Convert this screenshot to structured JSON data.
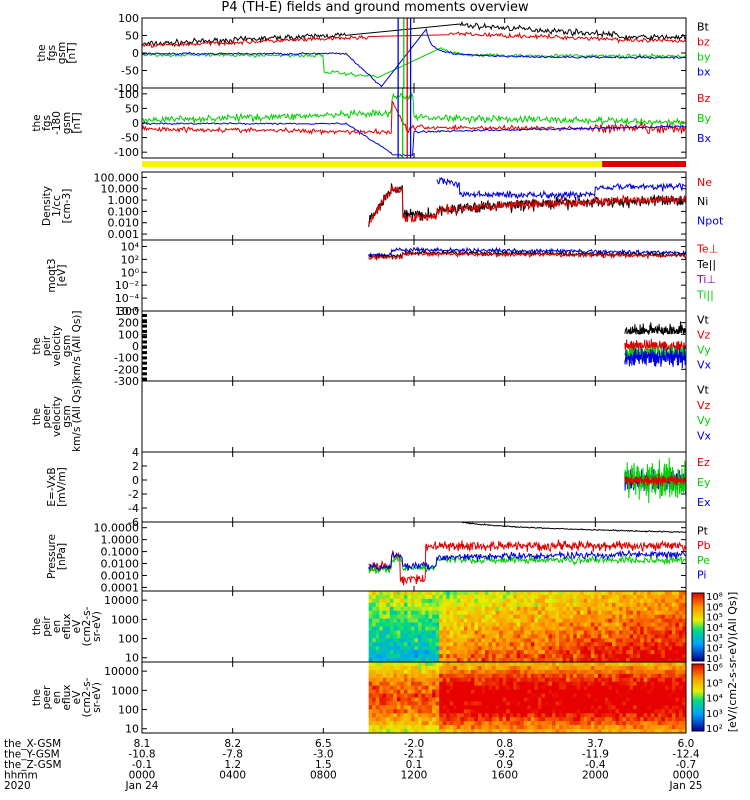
{
  "title": "P4 (TH-E) fields and ground moments overview",
  "colors": {
    "black": "#000000",
    "red": "#e00000",
    "green": "#00d000",
    "blue": "#0000e0",
    "yellow": "#f5f500",
    "bar_red": "#e00000"
  },
  "x_axis": {
    "tick_positions_hours": [
      0,
      4,
      8,
      12,
      16,
      20,
      24
    ],
    "rows": [
      {
        "label": "the_X-GSM",
        "values": [
          "8.1",
          "8.2",
          "6.5",
          "-2.0",
          "0.8",
          "3.7",
          "6.0"
        ]
      },
      {
        "label": "the_Y-GSM",
        "values": [
          "-10.8",
          "-7.8",
          "-3.0",
          "-2.1",
          "-9.2",
          "-11.9",
          "-12.4"
        ]
      },
      {
        "label": "the_Z-GSM",
        "values": [
          "-0.1",
          "1.2",
          "1.5",
          "0.1",
          "0.9",
          "-0.4",
          "-0.7"
        ]
      },
      {
        "label": "hhmm",
        "values": [
          "0000",
          "0400",
          "0800",
          "1200",
          "1600",
          "2000",
          "0000"
        ]
      },
      {
        "label": "2020",
        "values": [
          "Jan 24",
          "",
          "",
          "",
          "",
          "",
          "Jan 25"
        ]
      }
    ]
  },
  "chart_data": [
    {
      "type": "line",
      "name": "fgs-gsm",
      "ylabel_lines": [
        "the",
        "fgs",
        "gsm",
        "[nT]"
      ],
      "ylim": [
        -100,
        100
      ],
      "yticks": [
        "100",
        "50",
        "0",
        "-50",
        "-100"
      ],
      "ytick_values": [
        100,
        50,
        0,
        -50,
        -100
      ],
      "legend": [
        {
          "name": "Bt",
          "color": "black"
        },
        {
          "name": "bz",
          "color": "red"
        },
        {
          "name": "by",
          "color": "green"
        },
        {
          "name": "bx",
          "color": "blue"
        }
      ]
    },
    {
      "type": "line",
      "name": "fgs-gsm-hp",
      "ylabel_lines": [
        "the",
        "fgs",
        "-180",
        "gsm",
        "[nT]"
      ],
      "ylim": [
        -120,
        120
      ],
      "yticks": [
        "100",
        "50",
        "0",
        "-50",
        "-100"
      ],
      "ytick_values": [
        100,
        50,
        0,
        -50,
        -100
      ],
      "legend": [
        {
          "name": "Bz",
          "color": "red"
        },
        {
          "name": "By",
          "color": "green"
        },
        {
          "name": "Bx",
          "color": "blue"
        }
      ]
    },
    {
      "type": "line",
      "name": "density",
      "ylabel_lines": [
        "Density",
        "1/cc",
        "[cm-3]"
      ],
      "yscale": "log",
      "ylim": [
        0.0003,
        300
      ],
      "yticks": [
        "100.000",
        "10.000",
        "1.000",
        "0.100",
        "0.010",
        "0.001"
      ],
      "ytick_values": [
        100,
        10,
        1,
        0.1,
        0.01,
        0.001
      ],
      "legend": [
        {
          "name": "Ne",
          "color": "red"
        },
        {
          "name": "Ni",
          "color": "black"
        },
        {
          "name": "Npot",
          "color": "blue"
        }
      ]
    },
    {
      "type": "line",
      "name": "temperature",
      "ylabel_lines": [
        "moqt3",
        "[eV]"
      ],
      "yscale": "log",
      "ylim": [
        1e-06,
        100000
      ],
      "yticks": [
        "10⁴",
        "10²",
        "10⁰",
        "10⁻²",
        "10⁻⁴",
        "10⁻⁶"
      ],
      "ytick_values": [
        10000,
        100,
        1,
        0.01,
        0.0001,
        1e-06
      ],
      "legend": [
        {
          "name": "Te⊥",
          "color": "red"
        },
        {
          "name": "Te||",
          "color": "black"
        },
        {
          "name": "Ti⊥",
          "color": "purple"
        },
        {
          "name": "Ti||",
          "color": "green"
        }
      ]
    },
    {
      "type": "line",
      "name": "peir-velocity",
      "ylabel_lines": [
        "the",
        "peir",
        "velocity",
        "gsm",
        "km/s (All Qs)]"
      ],
      "ylim": [
        -300,
        300
      ],
      "yticks": [
        "300",
        "200",
        "100",
        "0",
        "-100",
        "-200",
        "-300"
      ],
      "ytick_values": [
        300,
        200,
        100,
        0,
        -100,
        -200,
        -300
      ],
      "legend": [
        {
          "name": "Vt",
          "color": "black"
        },
        {
          "name": "Vz",
          "color": "red"
        },
        {
          "name": "Vy",
          "color": "green"
        },
        {
          "name": "Vx",
          "color": "blue"
        }
      ]
    },
    {
      "type": "line",
      "name": "peer-velocity",
      "ylabel_lines": [
        "the",
        "peer",
        "velocity",
        "gsm",
        "km/s (All Qs)]"
      ],
      "ylim": [
        -300,
        300
      ],
      "yticks": [],
      "ytick_values": [],
      "legend": [
        {
          "name": "Vt",
          "color": "black"
        },
        {
          "name": "Vz",
          "color": "red"
        },
        {
          "name": "Vy",
          "color": "green"
        },
        {
          "name": "Vx",
          "color": "blue"
        }
      ]
    },
    {
      "type": "line",
      "name": "e-field",
      "ylabel_lines": [
        "E=-VxB",
        "[mV/m]"
      ],
      "ylim": [
        -6,
        4
      ],
      "yticks": [
        "4",
        "2",
        "0",
        "-2",
        "-4",
        "-6"
      ],
      "ytick_values": [
        4,
        2,
        0,
        -2,
        -4,
        -6
      ],
      "legend": [
        {
          "name": "Ez",
          "color": "red"
        },
        {
          "name": "Ey",
          "color": "green"
        },
        {
          "name": "Ex",
          "color": "blue"
        }
      ]
    },
    {
      "type": "line",
      "name": "pressure",
      "ylabel_lines": [
        "Pressure",
        "[nPa]"
      ],
      "yscale": "log",
      "ylim": [
        5e-05,
        30
      ],
      "yticks": [
        "10.0000",
        "1.0000",
        "0.1000",
        "0.0100",
        "0.0010",
        "0.0001"
      ],
      "ytick_values": [
        10,
        1,
        0.1,
        0.01,
        0.001,
        0.0001
      ],
      "legend": [
        {
          "name": "Pt",
          "color": "black"
        },
        {
          "name": "Pb",
          "color": "red"
        },
        {
          "name": "Pe",
          "color": "green"
        },
        {
          "name": "Pi",
          "color": "blue"
        }
      ]
    },
    {
      "type": "heatmap",
      "name": "peir-energy-flux",
      "ylabel_lines": [
        "the",
        "peir",
        "en",
        "eflux",
        "eV",
        "(cm2-s-",
        "sr-eV)"
      ],
      "yscale": "log",
      "ylim": [
        6,
        30000
      ],
      "yticks": [
        "10000",
        "1000",
        "100",
        "10"
      ],
      "ytick_values": [
        10000,
        1000,
        100,
        10
      ]
    },
    {
      "type": "heatmap",
      "name": "peer-energy-flux",
      "ylabel_lines": [
        "the",
        "peer",
        "en",
        "eflux",
        "eV",
        "(cm2-s-",
        "sr-eV)"
      ],
      "yscale": "log",
      "ylim": [
        6,
        30000
      ],
      "yticks": [
        "10000",
        "1000",
        "100",
        "10"
      ],
      "ytick_values": [
        10000,
        1000,
        100,
        10
      ]
    }
  ],
  "colorbar": {
    "label": "[eV/(cm2-s-sr-eV)(All Qs)]",
    "ticks_upper": [
      "10⁸",
      "10⁶",
      "10⁵",
      "10⁴",
      "10³",
      "10²",
      "10¹"
    ],
    "ticks_lower": [
      "10⁶",
      "10⁵",
      "10⁴",
      "10³",
      "10²"
    ]
  }
}
